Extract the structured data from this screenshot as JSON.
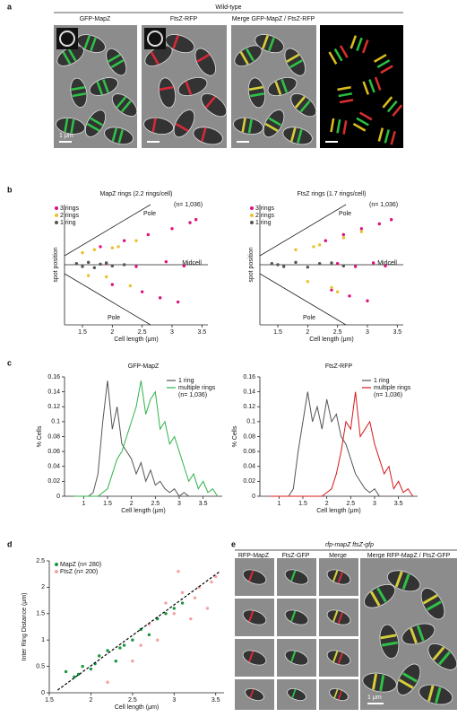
{
  "figure": {
    "panels": [
      "a",
      "b",
      "c",
      "d",
      "e"
    ],
    "a": {
      "title": "Wild-type",
      "labels": [
        "GFP-MapZ",
        "FtsZ-RFP",
        "Merge GFP-MapZ / FtsZ-RFP"
      ],
      "scale": "1 μm"
    },
    "e": {
      "title": "rfp-mapZ ftsZ-gfp",
      "labels": [
        "RFP-MapZ",
        "FtsZ-GFP",
        "Merge",
        "Merge RFP-MapZ / FtsZ-GFP"
      ],
      "scale": "1 μm"
    }
  },
  "chart_data": [
    {
      "type": "scatter",
      "title": "MapZ rings (2.2 rings/cell)",
      "xlabel": "Cell length (μm)",
      "ylabel": "spot position",
      "note": "(n= 1,036)",
      "annotations": [
        "Pole",
        "Midcell",
        "Pole"
      ],
      "xlim": [
        1.2,
        3.6
      ],
      "xticks": [
        1.5,
        2,
        2.5,
        3,
        3.5
      ],
      "ylim": [
        -1,
        1
      ],
      "legend": "upper-left",
      "series": [
        {
          "name": "3 rings",
          "color": "#e0107a",
          "x": [
            1.8,
            2.2,
            2.6,
            3.0,
            3.3,
            1.9,
            2.4,
            2.9,
            3.2,
            2.0,
            2.5,
            3.1,
            2.8,
            3.4
          ],
          "values": [
            0.3,
            0.4,
            0.5,
            0.6,
            0.7,
            0.02,
            -0.03,
            0.05,
            -0.02,
            -0.33,
            -0.45,
            -0.62,
            -0.55,
            0.75
          ]
        },
        {
          "name": "2 rings",
          "color": "#e8c22a",
          "x": [
            1.5,
            1.7,
            1.9,
            2.1,
            2.3,
            1.6,
            2.0,
            2.4
          ],
          "values": [
            0.2,
            0.25,
            -0.2,
            0.3,
            -0.35,
            -0.18,
            0.28,
            0.4
          ]
        },
        {
          "name": "1 ring",
          "color": "#555555",
          "x": [
            1.4,
            1.5,
            1.6,
            1.7,
            1.8,
            1.9,
            2.0,
            2.2
          ],
          "values": [
            0.02,
            -0.03,
            0.04,
            -0.05,
            0.01,
            0.03,
            -0.02,
            0.0
          ]
        }
      ]
    },
    {
      "type": "scatter",
      "title": "FtsZ rings (1.7 rings/cell)",
      "xlabel": "Cell length (μm)",
      "ylabel": "spot position",
      "note": "(n= 1,036)",
      "annotations": [
        "Pole",
        "Midcell",
        "Pole"
      ],
      "xlim": [
        1.2,
        3.6
      ],
      "xticks": [
        1.5,
        2,
        2.5,
        3,
        3.5
      ],
      "ylim": [
        -1,
        1
      ],
      "legend": "upper-left",
      "series": [
        {
          "name": "3 rings",
          "color": "#e0107a",
          "x": [
            2.3,
            2.6,
            2.9,
            3.2,
            3.4,
            2.5,
            2.8,
            3.1,
            3.3,
            2.4,
            2.7,
            3.0
          ],
          "values": [
            0.4,
            0.5,
            0.6,
            0.68,
            0.75,
            0.02,
            -0.03,
            0.03,
            -0.02,
            -0.42,
            -0.52,
            -0.6
          ]
        },
        {
          "name": "2 rings",
          "color": "#e8c22a",
          "x": [
            1.8,
            2.0,
            2.2,
            2.4,
            2.6,
            2.1,
            2.5,
            2.9
          ],
          "values": [
            0.25,
            -0.28,
            0.33,
            -0.38,
            0.45,
            0.3,
            -0.45,
            0.55
          ]
        },
        {
          "name": "1 ring",
          "color": "#555555",
          "x": [
            1.4,
            1.6,
            1.8,
            2.0,
            2.2,
            2.4,
            2.6,
            1.5
          ],
          "values": [
            0.02,
            -0.03,
            0.04,
            -0.04,
            0.02,
            0.03,
            -0.02,
            0.0
          ]
        }
      ]
    },
    {
      "type": "line",
      "title": "GFP-MapZ",
      "xlabel": "Cell length (μm)",
      "ylabel": "% Cells",
      "note": "(n= 1,036)",
      "legend": "upper-right",
      "xlim": [
        0.6,
        3.9
      ],
      "xticks": [
        1,
        1.5,
        2,
        2.5,
        3,
        3.5
      ],
      "ylim": [
        0,
        0.16
      ],
      "yticks": [
        0,
        0.02,
        0.04,
        0.06,
        0.08,
        0.1,
        0.12,
        0.14,
        0.16
      ],
      "x": [
        0.8,
        0.9,
        1.0,
        1.1,
        1.2,
        1.3,
        1.4,
        1.5,
        1.6,
        1.7,
        1.8,
        1.9,
        2.0,
        2.1,
        2.2,
        2.3,
        2.4,
        2.5,
        2.6,
        2.7,
        2.8,
        2.9,
        3.0,
        3.1,
        3.2,
        3.3,
        3.4,
        3.5,
        3.6,
        3.7,
        3.8
      ],
      "series": [
        {
          "name": "1 ring",
          "color": "#555555",
          "values": [
            0,
            0,
            0,
            0,
            0.005,
            0.03,
            0.1,
            0.155,
            0.09,
            0.12,
            0.07,
            0.06,
            0.05,
            0.03,
            0.045,
            0.02,
            0.035,
            0.015,
            0.02,
            0.01,
            0.005,
            0.01,
            0,
            0.005,
            0,
            0,
            0,
            0,
            0,
            0,
            0
          ]
        },
        {
          "name": "multiple rings",
          "color": "#2db34a",
          "values": [
            0,
            0,
            0,
            0,
            0,
            0,
            0.005,
            0.01,
            0.03,
            0.05,
            0.06,
            0.08,
            0.1,
            0.12,
            0.155,
            0.11,
            0.13,
            0.14,
            0.09,
            0.1,
            0.07,
            0.08,
            0.06,
            0.04,
            0.02,
            0.03,
            0.01,
            0.02,
            0.005,
            0.01,
            0
          ]
        }
      ]
    },
    {
      "type": "line",
      "title": "FtsZ-RFP",
      "xlabel": "Cell length (μm)",
      "ylabel": "% Cells",
      "note": "(n= 1,036)",
      "legend": "upper-right",
      "xlim": [
        0.6,
        3.9
      ],
      "xticks": [
        1,
        1.5,
        2,
        2.5,
        3,
        3.5
      ],
      "ylim": [
        0,
        0.16
      ],
      "yticks": [
        0,
        0.02,
        0.04,
        0.06,
        0.08,
        0.1,
        0.12,
        0.14,
        0.16
      ],
      "x": [
        0.8,
        0.9,
        1.0,
        1.1,
        1.2,
        1.3,
        1.4,
        1.5,
        1.6,
        1.7,
        1.8,
        1.9,
        2.0,
        2.1,
        2.2,
        2.3,
        2.4,
        2.5,
        2.6,
        2.7,
        2.8,
        2.9,
        3.0,
        3.1,
        3.2,
        3.3,
        3.4,
        3.5,
        3.6,
        3.7,
        3.8
      ],
      "series": [
        {
          "name": "1 ring",
          "color": "#555555",
          "values": [
            0,
            0,
            0,
            0,
            0,
            0.01,
            0.06,
            0.1,
            0.14,
            0.1,
            0.12,
            0.09,
            0.13,
            0.1,
            0.11,
            0.08,
            0.07,
            0.05,
            0.03,
            0.02,
            0.01,
            0.005,
            0.01,
            0,
            0,
            0,
            0,
            0,
            0,
            0,
            0
          ]
        },
        {
          "name": "multiple rings",
          "color": "#d7191c",
          "values": [
            0,
            0,
            0,
            0,
            0,
            0,
            0,
            0,
            0,
            0,
            0,
            0,
            0.005,
            0.01,
            0.03,
            0.06,
            0.1,
            0.09,
            0.14,
            0.08,
            0.09,
            0.1,
            0.07,
            0.05,
            0.03,
            0.04,
            0.01,
            0.02,
            0.005,
            0.01,
            0
          ]
        }
      ]
    },
    {
      "type": "scatter",
      "xlabel": "Cell length (μm)",
      "ylabel": "Inter Ring Distance (μm)",
      "legend": "upper-left",
      "xlim": [
        1.5,
        3.6
      ],
      "xticks": [
        1.5,
        2,
        2.5,
        3,
        3.5
      ],
      "ylim": [
        0,
        2.5
      ],
      "yticks": [
        0,
        0.5,
        1,
        1.5,
        2,
        2.5
      ],
      "trend": {
        "x": [
          1.6,
          3.55
        ],
        "values": [
          0.05,
          2.3
        ]
      },
      "series": [
        {
          "name": "MapZ (n= 280)",
          "color": "#1a9641",
          "x": [
            1.7,
            1.8,
            1.9,
            2.0,
            2.1,
            2.2,
            2.3,
            2.4,
            2.5,
            2.6,
            2.7,
            2.8,
            2.9,
            3.0,
            3.1,
            1.85,
            2.05,
            2.35
          ],
          "values": [
            0.4,
            0.3,
            0.5,
            0.45,
            0.7,
            0.8,
            0.6,
            0.9,
            1.0,
            1.2,
            1.1,
            1.4,
            1.5,
            1.6,
            1.7,
            0.35,
            0.55,
            0.85
          ]
        },
        {
          "name": "FtsZ (n= 200)",
          "color": "#f4a0a0",
          "x": [
            2.2,
            2.5,
            2.7,
            2.9,
            3.0,
            3.1,
            3.2,
            3.3,
            3.4,
            3.5,
            2.8,
            3.05,
            3.25,
            3.45,
            2.6
          ],
          "values": [
            0.2,
            0.6,
            1.3,
            1.7,
            1.5,
            1.9,
            1.4,
            2.0,
            1.6,
            2.2,
            1.0,
            2.3,
            1.8,
            2.1,
            0.9
          ]
        }
      ]
    }
  ]
}
